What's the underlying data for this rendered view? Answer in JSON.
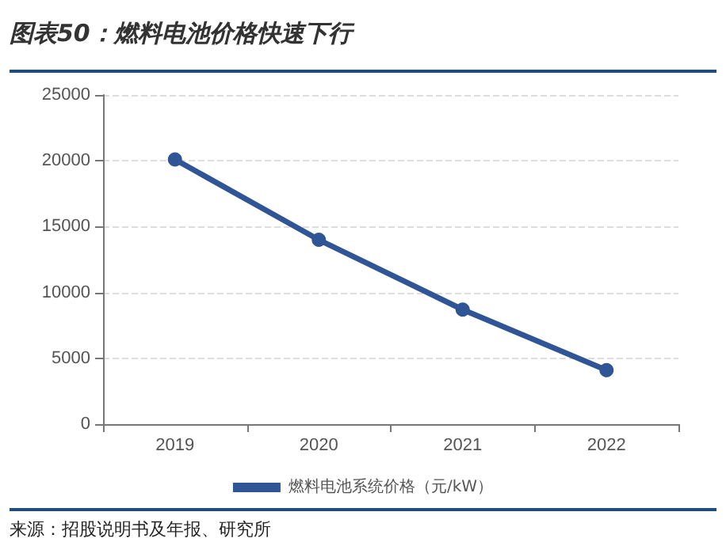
{
  "chart_data": {
    "type": "line",
    "title": "图表50：燃料电池价格快速下行",
    "categories": [
      "2019",
      "2020",
      "2021",
      "2022"
    ],
    "series": [
      {
        "name": "燃料电池系统价格（元/kW）",
        "color": "#2f5597",
        "values": [
          20100,
          14000,
          8700,
          4100
        ]
      }
    ],
    "ylim": [
      0,
      25000
    ],
    "yticks": [
      0,
      5000,
      10000,
      15000,
      20000,
      25000
    ],
    "grid": "y",
    "legend": "bottom",
    "marker": "circle",
    "line_style": "solid",
    "annotations": [
      "来源：招股说明书及年报、研究所"
    ]
  }
}
